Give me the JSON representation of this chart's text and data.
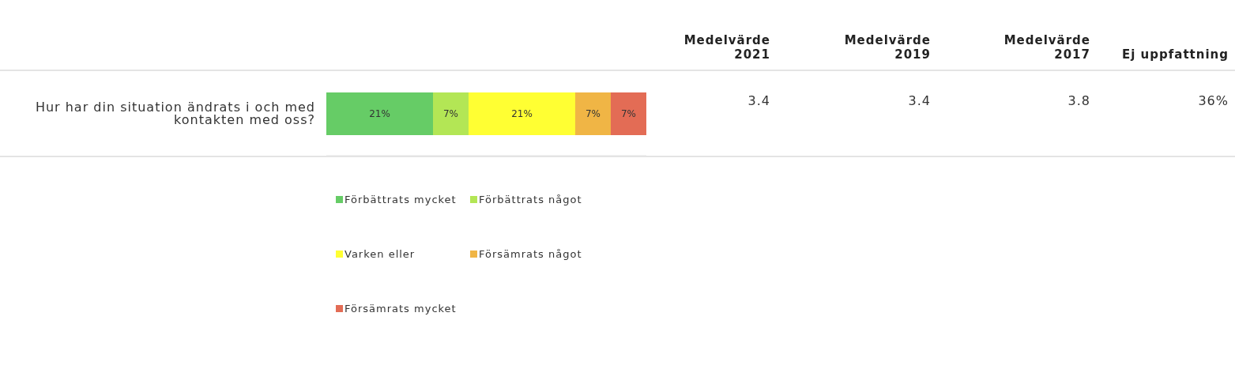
{
  "chart_data": {
    "type": "bar",
    "orientation": "horizontal",
    "stacked": true,
    "categories": [
      "Hur har din situation ändrats i och med kontakten med oss?"
    ],
    "series": [
      {
        "name": "Förbättrats mycket",
        "color": "#66cc66",
        "values": [
          21
        ],
        "value_labels": [
          "21%"
        ]
      },
      {
        "name": "Förbättrats något",
        "color": "#b3e655",
        "values": [
          7
        ],
        "value_labels": [
          "7%"
        ]
      },
      {
        "name": "Varken eller",
        "color": "#ffff33",
        "values": [
          21
        ],
        "value_labels": [
          "21%"
        ]
      },
      {
        "name": "Försämrats något",
        "color": "#f0b545",
        "values": [
          7
        ],
        "value_labels": [
          "7%"
        ]
      },
      {
        "name": "Försämrats mycket",
        "color": "#e36c55",
        "values": [
          7
        ],
        "value_labels": [
          "7%"
        ]
      }
    ],
    "xlim": [
      0,
      63
    ],
    "tick_labels": "y",
    "legend": "bottom",
    "annotations": [
      "Medelvärde 2021",
      "Medelvärde 2019",
      "Medelvärde 2017",
      "Ej uppfattning",
      "3.4",
      "3.4",
      "3.8",
      "36%"
    ]
  }
}
